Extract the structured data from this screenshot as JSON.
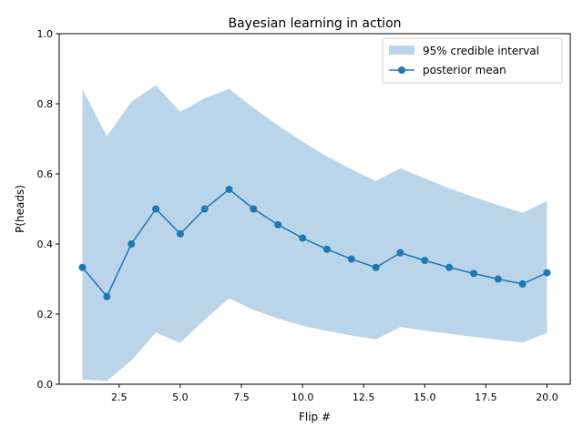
{
  "chart_data": {
    "type": "line",
    "title": "Bayesian learning in action",
    "xlabel": "Flip #",
    "ylabel": "P(heads)",
    "xlim": [
      0.05,
      20.95
    ],
    "ylim": [
      0,
      1
    ],
    "xticks": [
      2.5,
      5.0,
      7.5,
      10.0,
      12.5,
      15.0,
      17.5,
      20.0
    ],
    "xtick_labels": [
      "2.5",
      "5.0",
      "7.5",
      "10.0",
      "12.5",
      "15.0",
      "17.5",
      "20.0"
    ],
    "yticks": [
      0.0,
      0.2,
      0.4,
      0.6,
      0.8,
      1.0
    ],
    "ytick_labels": [
      "0.0",
      "0.2",
      "0.4",
      "0.6",
      "0.8",
      "1.0"
    ],
    "grid": false,
    "legend_position": "top-right",
    "x": [
      1,
      2,
      3,
      4,
      5,
      6,
      7,
      8,
      9,
      10,
      11,
      12,
      13,
      14,
      15,
      16,
      17,
      18,
      19,
      20
    ],
    "series": [
      {
        "name": "95% credible interval",
        "kind": "band",
        "color": "#bad5e9",
        "lower": [
          0.013,
          0.009,
          0.068,
          0.147,
          0.118,
          0.184,
          0.245,
          0.212,
          0.187,
          0.167,
          0.152,
          0.139,
          0.128,
          0.163,
          0.153,
          0.144,
          0.135,
          0.127,
          0.119,
          0.146
        ],
        "upper": [
          0.842,
          0.707,
          0.806,
          0.853,
          0.777,
          0.816,
          0.843,
          0.788,
          0.738,
          0.692,
          0.65,
          0.613,
          0.58,
          0.616,
          0.587,
          0.559,
          0.534,
          0.511,
          0.489,
          0.522
        ]
      },
      {
        "name": "posterior mean",
        "kind": "line",
        "color": "#1f77b4",
        "marker": "circle",
        "values": [
          0.333,
          0.25,
          0.4,
          0.5,
          0.429,
          0.5,
          0.556,
          0.5,
          0.455,
          0.417,
          0.385,
          0.357,
          0.333,
          0.375,
          0.353,
          0.333,
          0.316,
          0.3,
          0.286,
          0.318
        ]
      }
    ]
  }
}
